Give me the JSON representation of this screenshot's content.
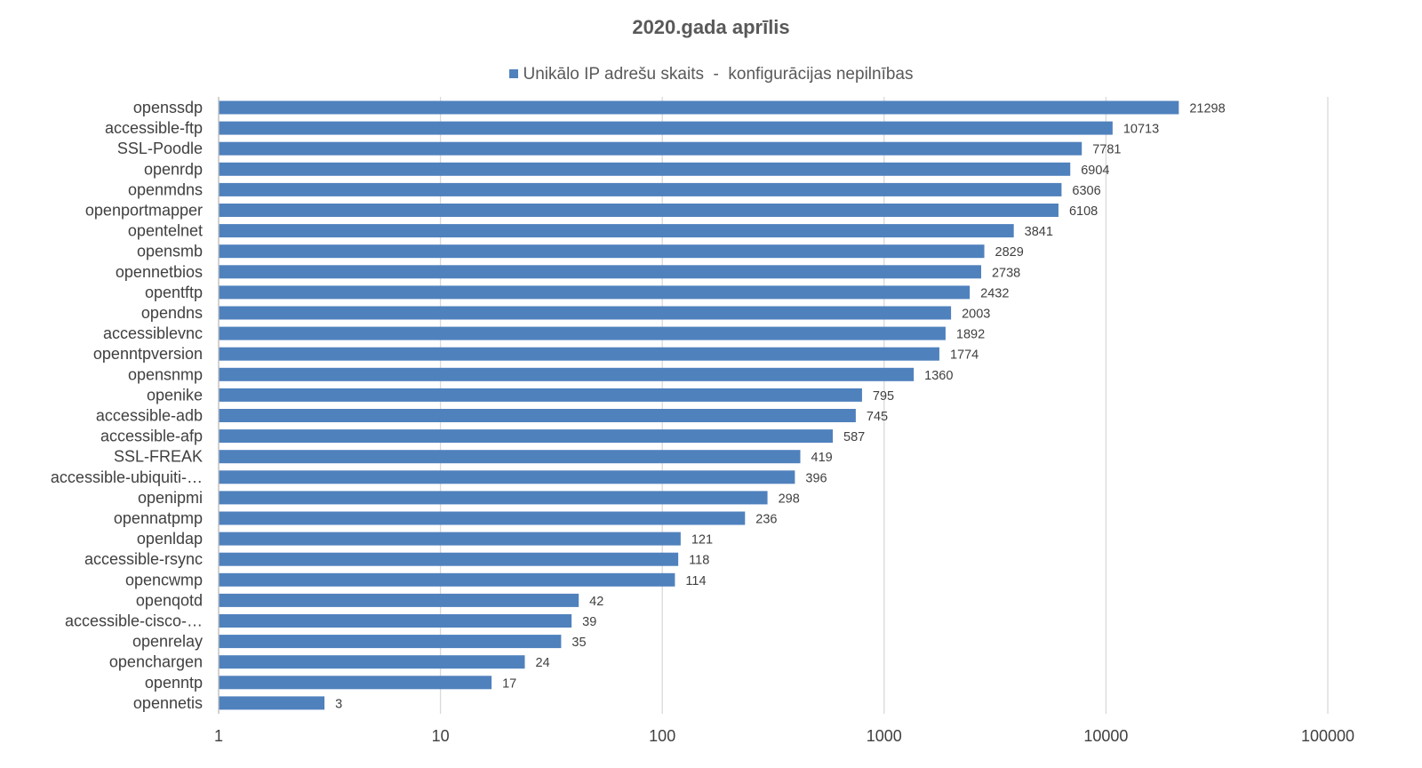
{
  "chart_data": {
    "type": "bar",
    "orientation": "horizontal",
    "title": "2020.gada aprīlis",
    "xscale": "log",
    "xlim": [
      1,
      100000
    ],
    "xticks": [
      1,
      10,
      100,
      1000,
      10000,
      100000
    ],
    "xtick_labels": [
      "1",
      "10",
      "100",
      "1000",
      "10000",
      "100000"
    ],
    "grid": "vertical major gridlines",
    "legend_position": "top",
    "bar_color": "#4f81bd",
    "categories": [
      "openssdp",
      "accessible-ftp",
      "SSL-Poodle",
      "openrdp",
      "openmdns",
      "openportmapper",
      "opentelnet",
      "opensmb",
      "opennetbios",
      "opentftp",
      "opendns",
      "accessiblevnc",
      "openntpversion",
      "opensnmp",
      "openike",
      "accessible-adb",
      "accessible-afp",
      "SSL-FREAK",
      "accessible-ubiquiti-…",
      "openipmi",
      "opennatpmp",
      "openldap",
      "accessible-rsync",
      "opencwmp",
      "openqotd",
      "accessible-cisco-…",
      "openrelay",
      "openchargen",
      "openntp",
      "opennetis"
    ],
    "series": [
      {
        "name": "Unikālo IP adrešu skaits  -  konfigurācijas nepilnības",
        "values": [
          21298,
          10713,
          7781,
          6904,
          6306,
          6108,
          3841,
          2829,
          2738,
          2432,
          2003,
          1892,
          1774,
          1360,
          795,
          745,
          587,
          419,
          396,
          298,
          236,
          121,
          118,
          114,
          42,
          39,
          35,
          24,
          17,
          3
        ]
      }
    ]
  }
}
